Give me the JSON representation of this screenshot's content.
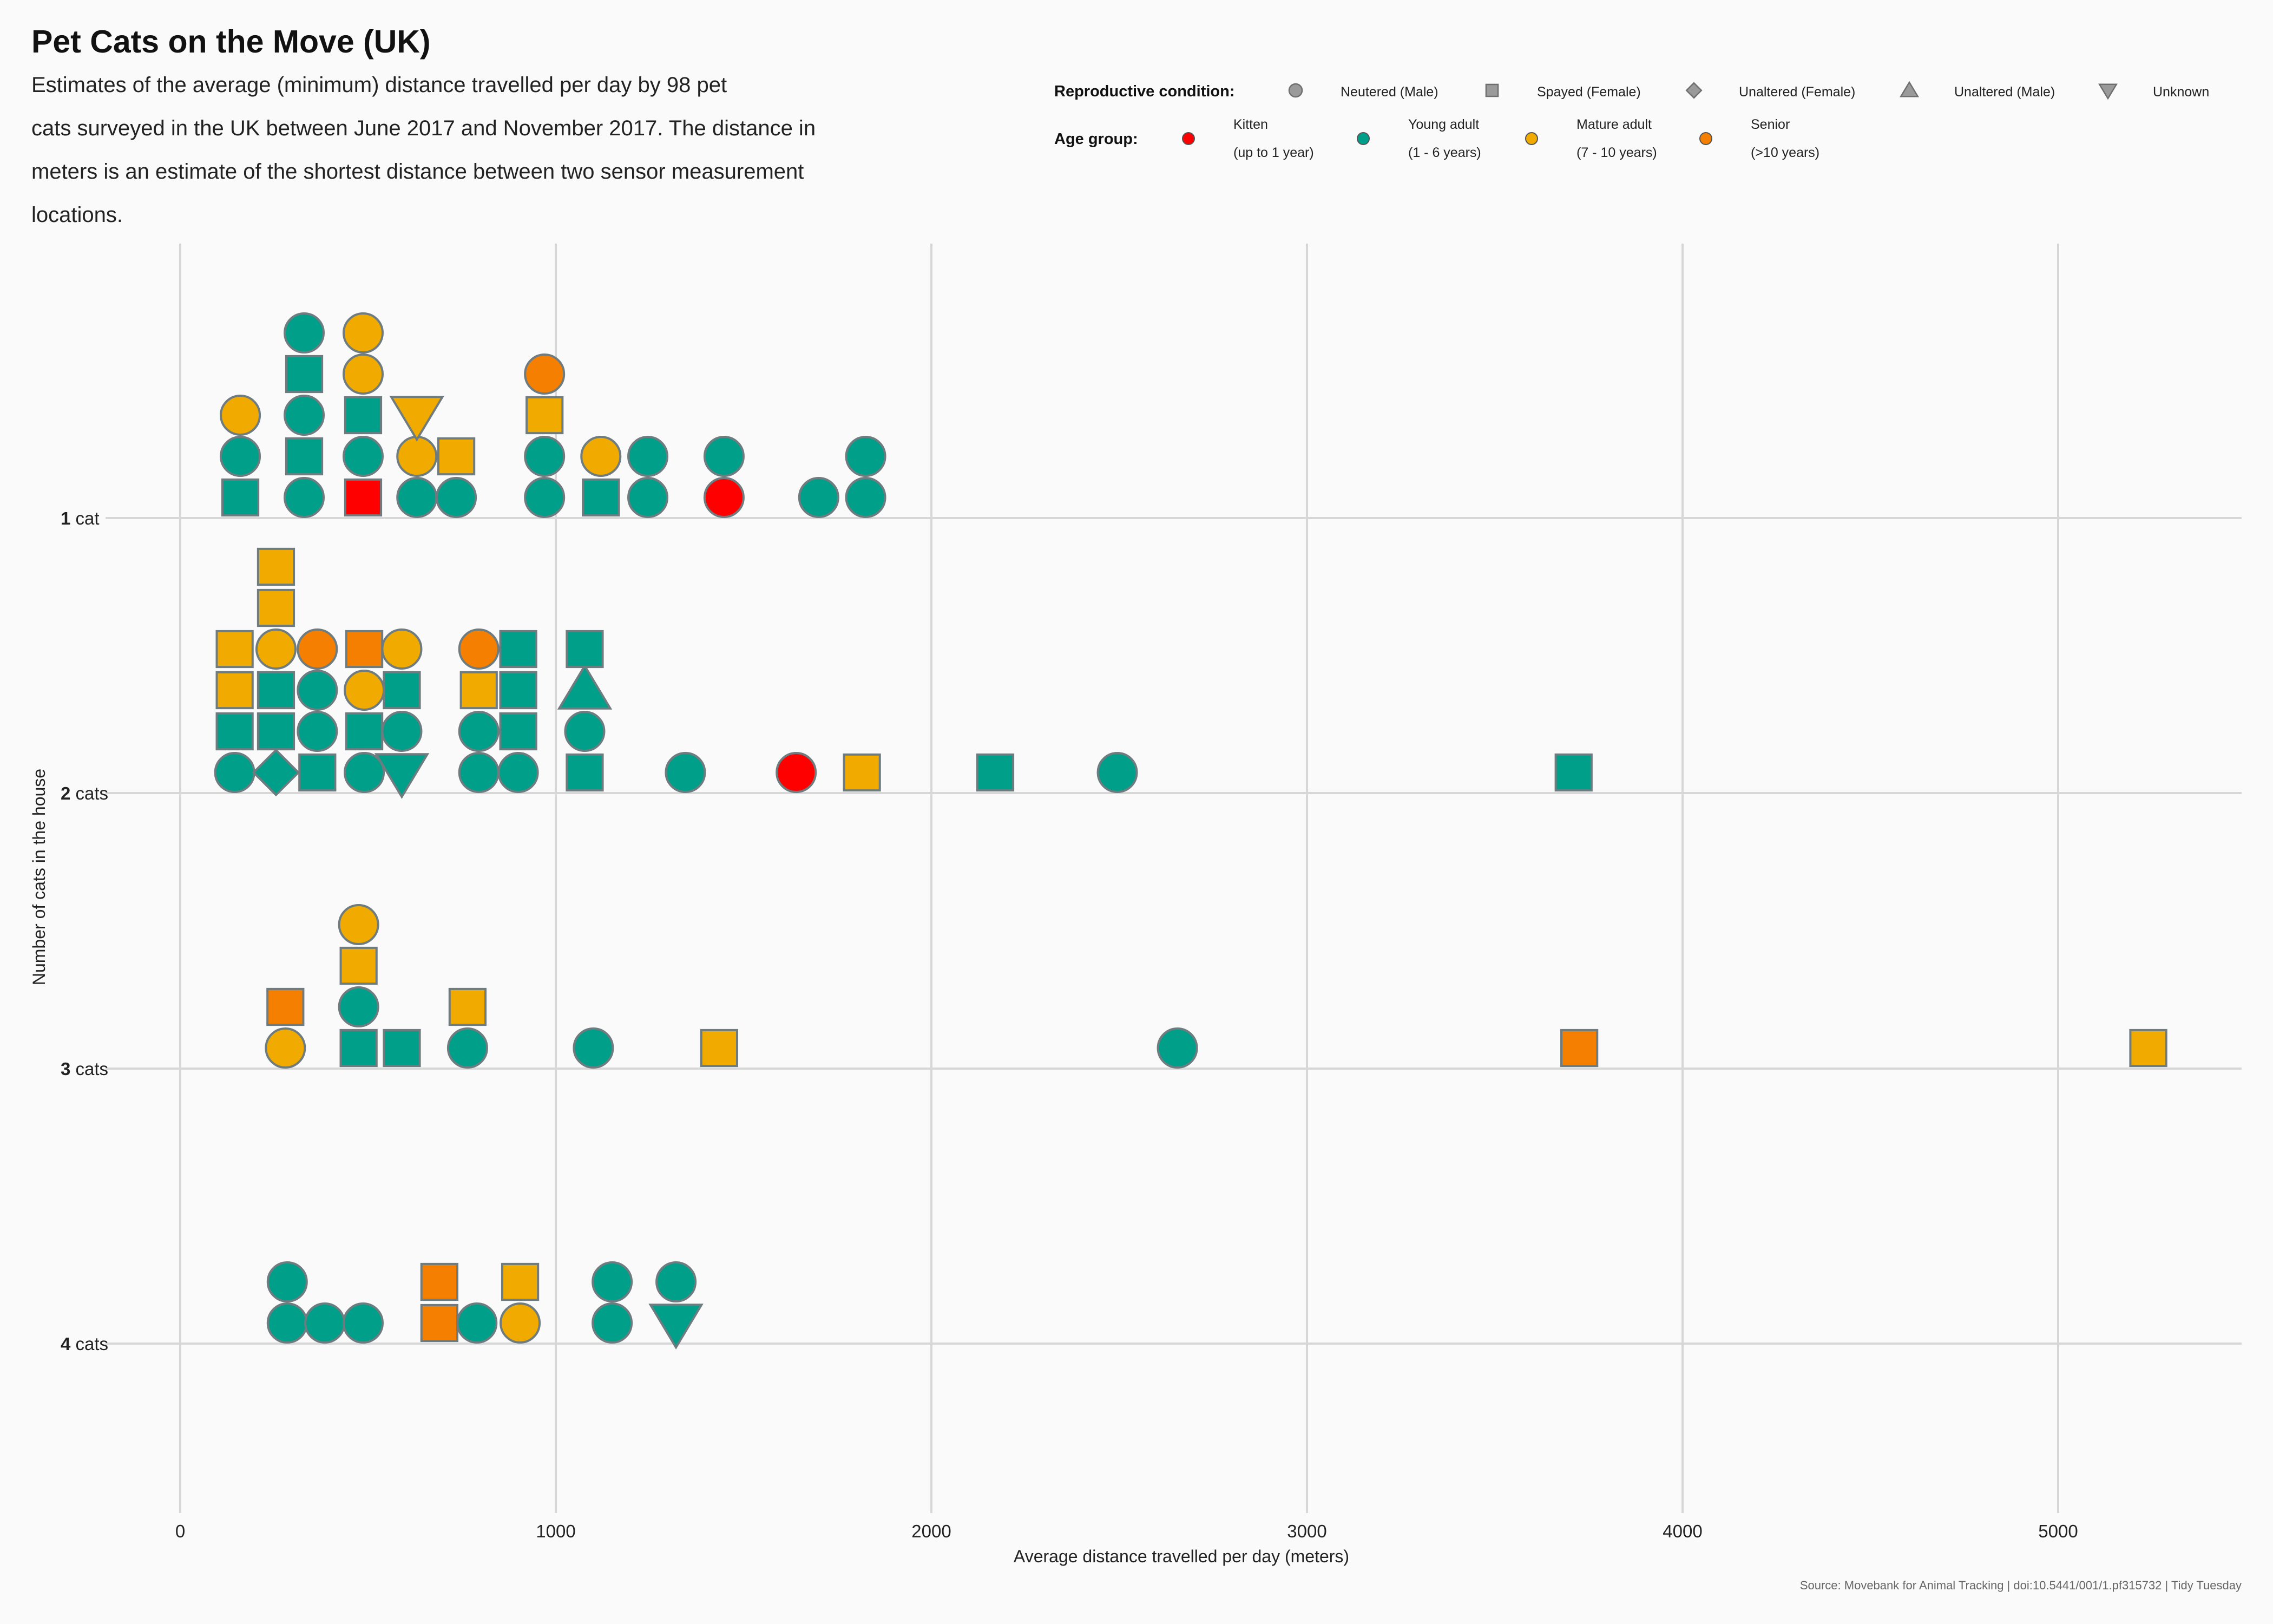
{
  "chart_data": {
    "type": "scatter",
    "title": "Pet Cats on the Move (UK)",
    "subtitle_lines": [
      "Estimates of the average (minimum) distance travelled per day by 98 pet",
      "cats surveyed in the UK between June 2017 and November 2017. The distance in",
      "meters is an estimate of the shortest distance between two sensor measurement",
      "locations."
    ],
    "xlabel": "Average distance travelled per day (meters)",
    "ylabel": "Number of cats in the house",
    "xlim": [
      -400,
      5500
    ],
    "x_ticks": [
      0,
      1000,
      2000,
      3000,
      4000,
      5000
    ],
    "y_categories": [
      {
        "num": "1",
        "word": " cat"
      },
      {
        "num": "2",
        "word": " cats"
      },
      {
        "num": "3",
        "word": " cats"
      },
      {
        "num": "4",
        "word": " cats"
      }
    ],
    "grid": true,
    "legend_position": "top-right",
    "caption": "Source: Movebank for Animal Tracking | doi:10.5441/001/1.pf315732 | Tidy Tuesday",
    "legend_shape": {
      "title": "Reproductive condition:",
      "items": [
        {
          "key": "neutered_male",
          "label": "Neutered (Male)",
          "shape": "circle"
        },
        {
          "key": "spayed_female",
          "label": "Spayed (Female)",
          "shape": "square"
        },
        {
          "key": "unaltered_female",
          "label": "Unaltered (Female)",
          "shape": "diamond"
        },
        {
          "key": "unaltered_male",
          "label": "Unaltered (Male)",
          "shape": "triangle-up"
        },
        {
          "key": "unknown",
          "label": "Unknown",
          "shape": "triangle-down"
        }
      ]
    },
    "legend_age": {
      "title": "Age group:",
      "items": [
        {
          "key": "kitten",
          "label": "Kitten",
          "sublabel": "(up to 1 year)",
          "color": "#ff0000"
        },
        {
          "key": "young",
          "label": "Young adult",
          "sublabel": "(1 - 6 years)",
          "color": "#009f8a"
        },
        {
          "key": "mature",
          "label": "Mature adult",
          "sublabel": "(7 - 10 years)",
          "color": "#f0aa00"
        },
        {
          "key": "senior",
          "label": "Senior",
          "sublabel": "(>10 years)",
          "color": "#f57f00"
        }
      ]
    },
    "marker_outline_color": "#6e7c80",
    "points": [
      {
        "house": 1,
        "x": 160,
        "stack": 0,
        "shape": "square",
        "age": "young"
      },
      {
        "house": 1,
        "x": 160,
        "stack": 1,
        "shape": "circle",
        "age": "young"
      },
      {
        "house": 1,
        "x": 160,
        "stack": 2,
        "shape": "circle",
        "age": "mature"
      },
      {
        "house": 1,
        "x": 330,
        "stack": 0,
        "shape": "circle",
        "age": "young"
      },
      {
        "house": 1,
        "x": 330,
        "stack": 1,
        "shape": "square",
        "age": "young"
      },
      {
        "house": 1,
        "x": 330,
        "stack": 2,
        "shape": "circle",
        "age": "young"
      },
      {
        "house": 1,
        "x": 330,
        "stack": 3,
        "shape": "square",
        "age": "young"
      },
      {
        "house": 1,
        "x": 330,
        "stack": 4,
        "shape": "circle",
        "age": "young"
      },
      {
        "house": 1,
        "x": 487,
        "stack": 0,
        "shape": "square",
        "age": "kitten"
      },
      {
        "house": 1,
        "x": 487,
        "stack": 1,
        "shape": "circle",
        "age": "young"
      },
      {
        "house": 1,
        "x": 487,
        "stack": 2,
        "shape": "square",
        "age": "young"
      },
      {
        "house": 1,
        "x": 487,
        "stack": 3,
        "shape": "circle",
        "age": "mature"
      },
      {
        "house": 1,
        "x": 487,
        "stack": 4,
        "shape": "circle",
        "age": "mature"
      },
      {
        "house": 1,
        "x": 630,
        "stack": 0,
        "shape": "circle",
        "age": "young"
      },
      {
        "house": 1,
        "x": 630,
        "stack": 1,
        "shape": "circle",
        "age": "mature"
      },
      {
        "house": 1,
        "x": 630,
        "stack": 2,
        "shape": "triangle-down",
        "age": "mature"
      },
      {
        "house": 1,
        "x": 735,
        "stack": 0,
        "shape": "circle",
        "age": "young"
      },
      {
        "house": 1,
        "x": 735,
        "stack": 1,
        "shape": "square",
        "age": "mature"
      },
      {
        "house": 1,
        "x": 970,
        "stack": 0,
        "shape": "circle",
        "age": "young"
      },
      {
        "house": 1,
        "x": 970,
        "stack": 1,
        "shape": "circle",
        "age": "young"
      },
      {
        "house": 1,
        "x": 970,
        "stack": 2,
        "shape": "square",
        "age": "mature"
      },
      {
        "house": 1,
        "x": 970,
        "stack": 3,
        "shape": "circle",
        "age": "senior"
      },
      {
        "house": 1,
        "x": 1120,
        "stack": 0,
        "shape": "square",
        "age": "young"
      },
      {
        "house": 1,
        "x": 1120,
        "stack": 1,
        "shape": "circle",
        "age": "mature"
      },
      {
        "house": 1,
        "x": 1245,
        "stack": 0,
        "shape": "circle",
        "age": "young"
      },
      {
        "house": 1,
        "x": 1245,
        "stack": 1,
        "shape": "circle",
        "age": "young"
      },
      {
        "house": 1,
        "x": 1448,
        "stack": 0,
        "shape": "circle",
        "age": "kitten"
      },
      {
        "house": 1,
        "x": 1448,
        "stack": 1,
        "shape": "circle",
        "age": "young"
      },
      {
        "house": 1,
        "x": 1700,
        "stack": 0,
        "shape": "circle",
        "age": "young"
      },
      {
        "house": 1,
        "x": 1825,
        "stack": 0,
        "shape": "circle",
        "age": "young"
      },
      {
        "house": 1,
        "x": 1825,
        "stack": 1,
        "shape": "circle",
        "age": "young"
      },
      {
        "house": 2,
        "x": 145,
        "stack": 0,
        "shape": "circle",
        "age": "young"
      },
      {
        "house": 2,
        "x": 145,
        "stack": 1,
        "shape": "square",
        "age": "young"
      },
      {
        "house": 2,
        "x": 145,
        "stack": 2,
        "shape": "square",
        "age": "mature"
      },
      {
        "house": 2,
        "x": 145,
        "stack": 3,
        "shape": "square",
        "age": "mature"
      },
      {
        "house": 2,
        "x": 255,
        "stack": 0,
        "shape": "diamond",
        "age": "young"
      },
      {
        "house": 2,
        "x": 255,
        "stack": 1,
        "shape": "square",
        "age": "young"
      },
      {
        "house": 2,
        "x": 255,
        "stack": 2,
        "shape": "square",
        "age": "young"
      },
      {
        "house": 2,
        "x": 255,
        "stack": 3,
        "shape": "circle",
        "age": "mature"
      },
      {
        "house": 2,
        "x": 255,
        "stack": 4,
        "shape": "square",
        "age": "mature"
      },
      {
        "house": 2,
        "x": 255,
        "stack": 5,
        "shape": "square",
        "age": "mature"
      },
      {
        "house": 2,
        "x": 365,
        "stack": 0,
        "shape": "square",
        "age": "young"
      },
      {
        "house": 2,
        "x": 365,
        "stack": 1,
        "shape": "circle",
        "age": "young"
      },
      {
        "house": 2,
        "x": 365,
        "stack": 2,
        "shape": "circle",
        "age": "young"
      },
      {
        "house": 2,
        "x": 365,
        "stack": 3,
        "shape": "circle",
        "age": "senior"
      },
      {
        "house": 2,
        "x": 490,
        "stack": 0,
        "shape": "circle",
        "age": "young"
      },
      {
        "house": 2,
        "x": 490,
        "stack": 1,
        "shape": "square",
        "age": "young"
      },
      {
        "house": 2,
        "x": 490,
        "stack": 2,
        "shape": "circle",
        "age": "mature"
      },
      {
        "house": 2,
        "x": 490,
        "stack": 3,
        "shape": "square",
        "age": "senior"
      },
      {
        "house": 2,
        "x": 590,
        "stack": 0,
        "shape": "triangle-down",
        "age": "young"
      },
      {
        "house": 2,
        "x": 590,
        "stack": 1,
        "shape": "circle",
        "age": "young"
      },
      {
        "house": 2,
        "x": 590,
        "stack": 2,
        "shape": "square",
        "age": "young"
      },
      {
        "house": 2,
        "x": 590,
        "stack": 3,
        "shape": "circle",
        "age": "mature"
      },
      {
        "house": 2,
        "x": 795,
        "stack": 0,
        "shape": "circle",
        "age": "young"
      },
      {
        "house": 2,
        "x": 795,
        "stack": 1,
        "shape": "circle",
        "age": "young"
      },
      {
        "house": 2,
        "x": 795,
        "stack": 2,
        "shape": "square",
        "age": "mature"
      },
      {
        "house": 2,
        "x": 795,
        "stack": 3,
        "shape": "circle",
        "age": "senior"
      },
      {
        "house": 2,
        "x": 900,
        "stack": 0,
        "shape": "circle",
        "age": "young"
      },
      {
        "house": 2,
        "x": 900,
        "stack": 1,
        "shape": "square",
        "age": "young"
      },
      {
        "house": 2,
        "x": 900,
        "stack": 2,
        "shape": "square",
        "age": "young"
      },
      {
        "house": 2,
        "x": 900,
        "stack": 3,
        "shape": "square",
        "age": "young"
      },
      {
        "house": 2,
        "x": 1077,
        "stack": 0,
        "shape": "square",
        "age": "young"
      },
      {
        "house": 2,
        "x": 1077,
        "stack": 1,
        "shape": "circle",
        "age": "young"
      },
      {
        "house": 2,
        "x": 1077,
        "stack": 2,
        "shape": "triangle-up",
        "age": "young"
      },
      {
        "house": 2,
        "x": 1077,
        "stack": 3,
        "shape": "square",
        "age": "young"
      },
      {
        "house": 2,
        "x": 1345,
        "stack": 0,
        "shape": "circle",
        "age": "young"
      },
      {
        "house": 2,
        "x": 1640,
        "stack": 0,
        "shape": "circle",
        "age": "kitten"
      },
      {
        "house": 2,
        "x": 1815,
        "stack": 0,
        "shape": "square",
        "age": "mature"
      },
      {
        "house": 2,
        "x": 2170,
        "stack": 0,
        "shape": "square",
        "age": "young"
      },
      {
        "house": 2,
        "x": 2495,
        "stack": 0,
        "shape": "circle",
        "age": "young"
      },
      {
        "house": 2,
        "x": 3710,
        "stack": 0,
        "shape": "square",
        "age": "young"
      },
      {
        "house": 3,
        "x": 280,
        "stack": 0,
        "shape": "circle",
        "age": "mature"
      },
      {
        "house": 3,
        "x": 280,
        "stack": 1,
        "shape": "square",
        "age": "senior"
      },
      {
        "house": 3,
        "x": 475,
        "stack": 0,
        "shape": "square",
        "age": "young"
      },
      {
        "house": 3,
        "x": 475,
        "stack": 1,
        "shape": "circle",
        "age": "young"
      },
      {
        "house": 3,
        "x": 475,
        "stack": 2,
        "shape": "square",
        "age": "mature"
      },
      {
        "house": 3,
        "x": 475,
        "stack": 3,
        "shape": "circle",
        "age": "mature"
      },
      {
        "house": 3,
        "x": 590,
        "stack": 0,
        "shape": "square",
        "age": "young"
      },
      {
        "house": 3,
        "x": 765,
        "stack": 0,
        "shape": "circle",
        "age": "young"
      },
      {
        "house": 3,
        "x": 765,
        "stack": 1,
        "shape": "square",
        "age": "mature"
      },
      {
        "house": 3,
        "x": 1100,
        "stack": 0,
        "shape": "circle",
        "age": "young"
      },
      {
        "house": 3,
        "x": 1435,
        "stack": 0,
        "shape": "square",
        "age": "mature"
      },
      {
        "house": 3,
        "x": 2655,
        "stack": 0,
        "shape": "circle",
        "age": "young"
      },
      {
        "house": 3,
        "x": 3725,
        "stack": 0,
        "shape": "square",
        "age": "senior"
      },
      {
        "house": 3,
        "x": 5240,
        "stack": 0,
        "shape": "square",
        "age": "mature"
      },
      {
        "house": 4,
        "x": 285,
        "stack": 0,
        "shape": "circle",
        "age": "young"
      },
      {
        "house": 4,
        "x": 285,
        "stack": 1,
        "shape": "circle",
        "age": "young"
      },
      {
        "house": 4,
        "x": 385,
        "stack": 0,
        "shape": "circle",
        "age": "young"
      },
      {
        "house": 4,
        "x": 487,
        "stack": 0,
        "shape": "circle",
        "age": "young"
      },
      {
        "house": 4,
        "x": 690,
        "stack": 0,
        "shape": "square",
        "age": "senior"
      },
      {
        "house": 4,
        "x": 690,
        "stack": 1,
        "shape": "square",
        "age": "senior"
      },
      {
        "house": 4,
        "x": 790,
        "stack": 0,
        "shape": "circle",
        "age": "young"
      },
      {
        "house": 4,
        "x": 905,
        "stack": 0,
        "shape": "circle",
        "age": "mature"
      },
      {
        "house": 4,
        "x": 905,
        "stack": 1,
        "shape": "square",
        "age": "mature"
      },
      {
        "house": 4,
        "x": 1150,
        "stack": 0,
        "shape": "circle",
        "age": "young"
      },
      {
        "house": 4,
        "x": 1150,
        "stack": 1,
        "shape": "circle",
        "age": "young"
      },
      {
        "house": 4,
        "x": 1320,
        "stack": 0,
        "shape": "triangle-down",
        "age": "young"
      },
      {
        "house": 4,
        "x": 1320,
        "stack": 1,
        "shape": "circle",
        "age": "young"
      }
    ]
  }
}
